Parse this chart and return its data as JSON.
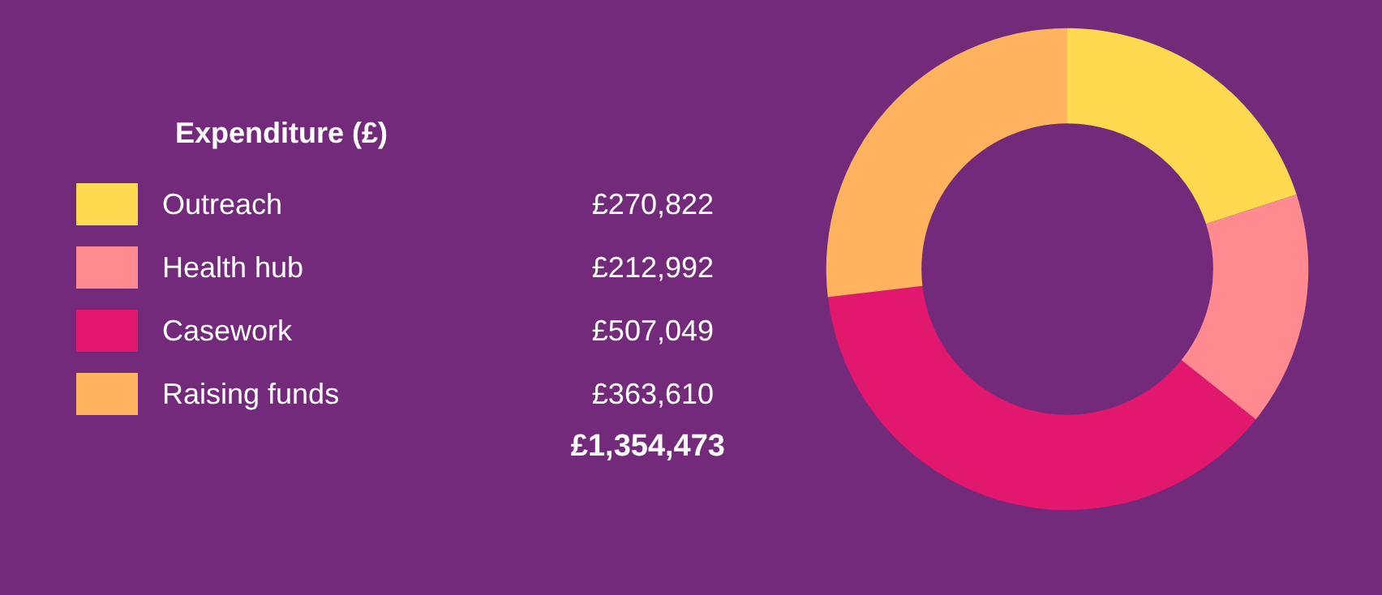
{
  "chart_data": {
    "type": "donut",
    "legend_title": "Expenditure (£)",
    "categories": [
      "Outreach",
      "Health hub",
      "Casework",
      "Raising funds"
    ],
    "values": [
      270822,
      212992,
      507049,
      363610
    ],
    "value_labels": [
      "£270,822",
      "£212,992",
      "£507,049",
      "£363,610"
    ],
    "colors": [
      "#ffd94f",
      "#ff8a8f",
      "#e2176e",
      "#ffb35f"
    ],
    "annotations": [
      "£1,354,473"
    ],
    "legend": "left"
  }
}
